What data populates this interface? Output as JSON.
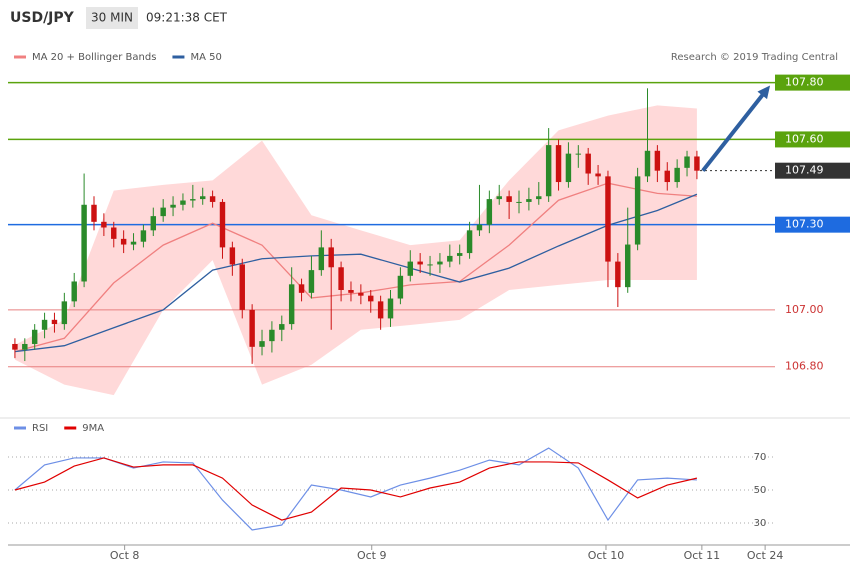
{
  "header": {
    "symbol": "USD/JPY",
    "interval": "30 MIN",
    "time": "09:21:38 CET",
    "credit": "Research © 2019 Trading Central"
  },
  "chart_data": [
    {
      "type": "candlestick",
      "up_color": "#2a8a2a",
      "down_color": "#cc1111",
      "xlim": [
        -0.7,
        76.9
      ],
      "ylim": [
        106.63,
        107.95
      ],
      "ohlc": [
        [
          106.88,
          106.9,
          106.83,
          106.86
        ],
        [
          106.86,
          106.9,
          106.82,
          106.88
        ],
        [
          106.88,
          106.95,
          106.86,
          106.93
        ],
        [
          106.93,
          106.99,
          106.9,
          106.965
        ],
        [
          106.965,
          106.99,
          106.92,
          106.95
        ],
        [
          106.95,
          107.06,
          106.93,
          107.03
        ],
        [
          107.03,
          107.13,
          107.01,
          107.1
        ],
        [
          107.1,
          107.48,
          107.08,
          107.37
        ],
        [
          107.37,
          107.4,
          107.28,
          107.31
        ],
        [
          107.31,
          107.34,
          107.26,
          107.29
        ],
        [
          107.29,
          107.31,
          107.22,
          107.25
        ],
        [
          107.25,
          107.28,
          107.2,
          107.23
        ],
        [
          107.23,
          107.27,
          107.21,
          107.24
        ],
        [
          107.24,
          107.3,
          107.22,
          107.28
        ],
        [
          107.28,
          107.36,
          107.26,
          107.33
        ],
        [
          107.33,
          107.39,
          107.31,
          107.36
        ],
        [
          107.36,
          107.4,
          107.33,
          107.37
        ],
        [
          107.37,
          107.41,
          107.35,
          107.385
        ],
        [
          107.385,
          107.44,
          107.36,
          107.39
        ],
        [
          107.39,
          107.43,
          107.37,
          107.4
        ],
        [
          107.4,
          107.42,
          107.36,
          107.38
        ],
        [
          107.38,
          107.39,
          107.18,
          107.22
        ],
        [
          107.22,
          107.24,
          107.12,
          107.16
        ],
        [
          107.16,
          107.18,
          106.97,
          107.0
        ],
        [
          107.0,
          107.02,
          106.81,
          106.87
        ],
        [
          106.87,
          106.93,
          106.84,
          106.89
        ],
        [
          106.89,
          106.96,
          106.85,
          106.93
        ],
        [
          106.93,
          106.98,
          106.89,
          106.95
        ],
        [
          106.95,
          107.15,
          106.93,
          107.09
        ],
        [
          107.09,
          107.11,
          107.03,
          107.06
        ],
        [
          107.06,
          107.19,
          107.04,
          107.14
        ],
        [
          107.14,
          107.28,
          107.12,
          107.22
        ],
        [
          107.22,
          107.25,
          106.93,
          107.15
        ],
        [
          107.15,
          107.17,
          107.03,
          107.07
        ],
        [
          107.07,
          107.1,
          107.03,
          107.06
        ],
        [
          107.06,
          107.09,
          107.02,
          107.05
        ],
        [
          107.05,
          107.07,
          106.99,
          107.03
        ],
        [
          107.03,
          107.05,
          106.93,
          106.97
        ],
        [
          106.97,
          107.07,
          106.94,
          107.04
        ],
        [
          107.04,
          107.15,
          107.02,
          107.12
        ],
        [
          107.12,
          107.21,
          107.1,
          107.17
        ],
        [
          107.17,
          107.2,
          107.13,
          107.16
        ],
        [
          107.16,
          107.19,
          107.12,
          107.16
        ],
        [
          107.16,
          107.2,
          107.13,
          107.17
        ],
        [
          107.17,
          107.23,
          107.15,
          107.19
        ],
        [
          107.19,
          107.23,
          107.16,
          107.2
        ],
        [
          107.2,
          107.31,
          107.18,
          107.28
        ],
        [
          107.28,
          107.44,
          107.26,
          107.3
        ],
        [
          107.3,
          107.42,
          107.27,
          107.39
        ],
        [
          107.39,
          107.44,
          107.37,
          107.4
        ],
        [
          107.4,
          107.42,
          107.32,
          107.38
        ],
        [
          107.38,
          107.42,
          107.34,
          107.38
        ],
        [
          107.38,
          107.43,
          107.35,
          107.39
        ],
        [
          107.39,
          107.45,
          107.37,
          107.4
        ],
        [
          107.4,
          107.64,
          107.38,
          107.58
        ],
        [
          107.58,
          107.6,
          107.42,
          107.45
        ],
        [
          107.45,
          107.59,
          107.43,
          107.55
        ],
        [
          107.55,
          107.58,
          107.5,
          107.55
        ],
        [
          107.55,
          107.57,
          107.44,
          107.48
        ],
        [
          107.48,
          107.51,
          107.44,
          107.47
        ],
        [
          107.47,
          107.49,
          107.08,
          107.17
        ],
        [
          107.17,
          107.2,
          107.01,
          107.08
        ],
        [
          107.08,
          107.36,
          107.06,
          107.23
        ],
        [
          107.23,
          107.5,
          107.21,
          107.47
        ],
        [
          107.47,
          107.78,
          107.45,
          107.56
        ],
        [
          107.56,
          107.58,
          107.45,
          107.49
        ],
        [
          107.49,
          107.52,
          107.42,
          107.45
        ],
        [
          107.45,
          107.53,
          107.43,
          107.5
        ],
        [
          107.5,
          107.56,
          107.47,
          107.54
        ],
        [
          107.54,
          107.56,
          107.46,
          107.49
        ]
      ],
      "series": [
        {
          "name": "MA 20 + Bollinger Bands",
          "color": "#f08080",
          "band_color": "#ffd9d9",
          "x": [
            0,
            5,
            10,
            15,
            20,
            25,
            30,
            35,
            40,
            45,
            50,
            55,
            60,
            65,
            69
          ],
          "values": [
            106.853,
            106.9,
            107.095,
            107.228,
            107.305,
            107.228,
            107.042,
            107.06,
            107.088,
            107.1,
            107.228,
            107.386,
            107.446,
            107.41,
            107.4
          ],
          "upper": [
            106.877,
            106.965,
            107.42,
            107.44,
            107.456,
            107.596,
            107.333,
            107.28,
            107.228,
            107.245,
            107.456,
            107.632,
            107.684,
            107.72,
            107.709
          ],
          "lower": [
            106.825,
            106.737,
            106.7,
            107.0,
            107.175,
            106.737,
            106.807,
            106.93,
            106.947,
            106.965,
            107.07,
            107.088,
            107.105,
            107.105,
            107.105
          ]
        },
        {
          "name": "MA 50",
          "color": "#2e5fa0",
          "x": [
            0,
            5,
            10,
            15,
            20,
            25,
            30,
            35,
            40,
            45,
            50,
            55,
            60,
            65,
            69
          ],
          "values": [
            106.853,
            106.874,
            106.937,
            107.0,
            107.14,
            107.18,
            107.19,
            107.196,
            107.147,
            107.098,
            107.147,
            107.225,
            107.298,
            107.35,
            107.407
          ]
        }
      ],
      "levels": [
        {
          "value": 107.8,
          "label": "107.80",
          "color": "#5aa30d",
          "style": "box"
        },
        {
          "value": 107.6,
          "label": "107.60",
          "color": "#5aa30d",
          "style": "box"
        },
        {
          "value": 107.49,
          "label": "107.49",
          "color": "#333333",
          "style": "dotted"
        },
        {
          "value": 107.3,
          "label": "107.30",
          "color": "#1e6be0",
          "style": "box"
        },
        {
          "value": 107.0,
          "label": "107.00",
          "color": "#e88080",
          "style": "text"
        },
        {
          "value": 106.8,
          "label": "106.80",
          "color": "#e88080",
          "style": "text"
        }
      ],
      "arrow": {
        "color": "#2e5fa0",
        "x": [
          69.6,
          76.4
        ],
        "y": [
          107.49,
          107.79
        ]
      }
    },
    {
      "type": "line",
      "xlim": [
        -0.7,
        76.9
      ],
      "ylim": [
        16.7,
        83.3
      ],
      "yticks": [
        30,
        50,
        70
      ],
      "xticks": [
        {
          "value": 11.1,
          "label": "Oct 8"
        },
        {
          "value": 36.1,
          "label": "Oct 9"
        },
        {
          "value": 59.8,
          "label": "Oct 10"
        },
        {
          "value": 69.5,
          "label": "Oct 11"
        },
        {
          "value": 75.9,
          "label": "Oct 24"
        }
      ],
      "x": [
        0,
        3,
        6,
        9,
        12,
        15,
        18,
        21,
        24,
        27,
        30,
        33,
        36,
        39,
        42,
        45,
        48,
        51,
        54,
        57,
        60,
        63,
        66,
        69
      ],
      "series": [
        {
          "name": "RSI",
          "color": "#6d8fe6",
          "values": [
            50,
            65.2,
            69.4,
            69.4,
            63.3,
            67,
            66.4,
            43.9,
            25.8,
            28.8,
            53,
            50,
            45.8,
            53,
            57.2,
            62,
            68.1,
            65.2,
            75.4,
            63.3,
            31.8,
            56.1,
            57.2,
            56.1
          ]
        },
        {
          "name": "9MA",
          "color": "#e00000",
          "values": [
            50,
            54.8,
            64.5,
            69.4,
            63.9,
            65.2,
            65.2,
            57.2,
            40.9,
            31.8,
            36.6,
            51.2,
            50,
            45.8,
            51.2,
            54.8,
            63.3,
            67,
            67,
            66.4,
            56.1,
            45.2,
            53,
            57.2
          ]
        }
      ]
    }
  ]
}
